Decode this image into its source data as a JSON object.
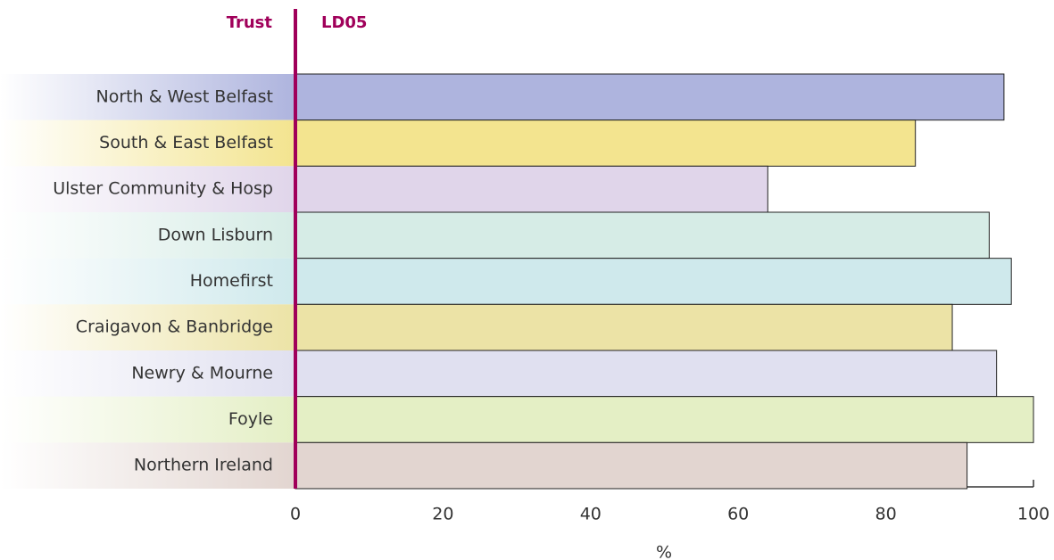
{
  "chart_data": {
    "type": "barh",
    "title": "LD05",
    "category_header": "Trust",
    "xlabel": "%",
    "categories": [
      "North & West Belfast",
      "South & East Belfast",
      "Ulster Community & Hosp",
      "Down Lisburn",
      "Homefirst",
      "Craigavon & Banbridge",
      "Newry & Mourne",
      "Foyle",
      "Northern Ireland"
    ],
    "values": [
      96,
      84,
      64,
      94,
      97,
      89,
      95,
      100,
      91
    ],
    "colors": [
      "#aeb4de",
      "#f3e48f",
      "#e0d5ea",
      "#d6ece6",
      "#cfe9ec",
      "#ece3a6",
      "#e0e0f0",
      "#e4efc5",
      "#e2d5d0"
    ],
    "xlim": [
      0,
      100
    ],
    "xticks": [
      0,
      20,
      40,
      60,
      80,
      100
    ],
    "grid": false
  }
}
